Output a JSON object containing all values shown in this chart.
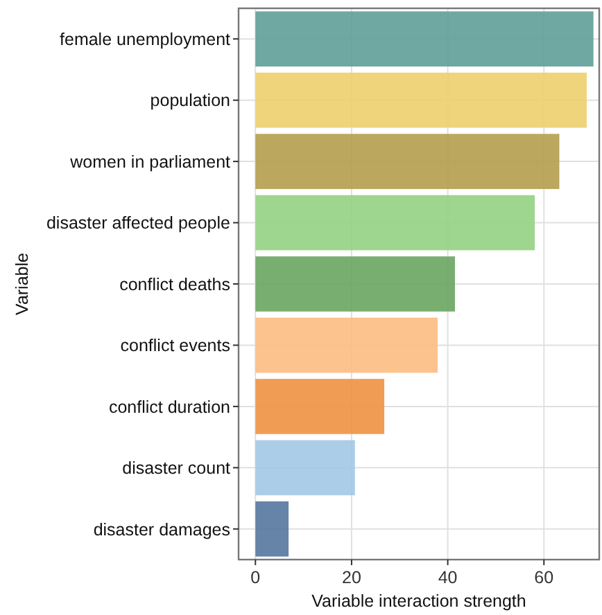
{
  "chart_data": {
    "type": "bar",
    "orientation": "horizontal",
    "xlabel": "Variable interaction strength",
    "ylabel": "Variable",
    "categories": [
      "female unemployment",
      "population",
      "women in parliament",
      "disaster affected people",
      "conflict deaths",
      "conflict events",
      "conflict duration",
      "disaster count",
      "disaster damages"
    ],
    "values": [
      70.3,
      68.9,
      63.2,
      58.1,
      41.5,
      37.9,
      26.8,
      20.7,
      6.9
    ],
    "colors": [
      "#5f9e98",
      "#eecf6d",
      "#b59d4c",
      "#93d283",
      "#6aa562",
      "#fdbc82",
      "#ee9142",
      "#a2c8e6",
      "#55769f"
    ],
    "xlim": [
      -3.5,
      71.5
    ],
    "xticks": [
      0,
      20,
      40,
      60
    ],
    "grid": true
  }
}
